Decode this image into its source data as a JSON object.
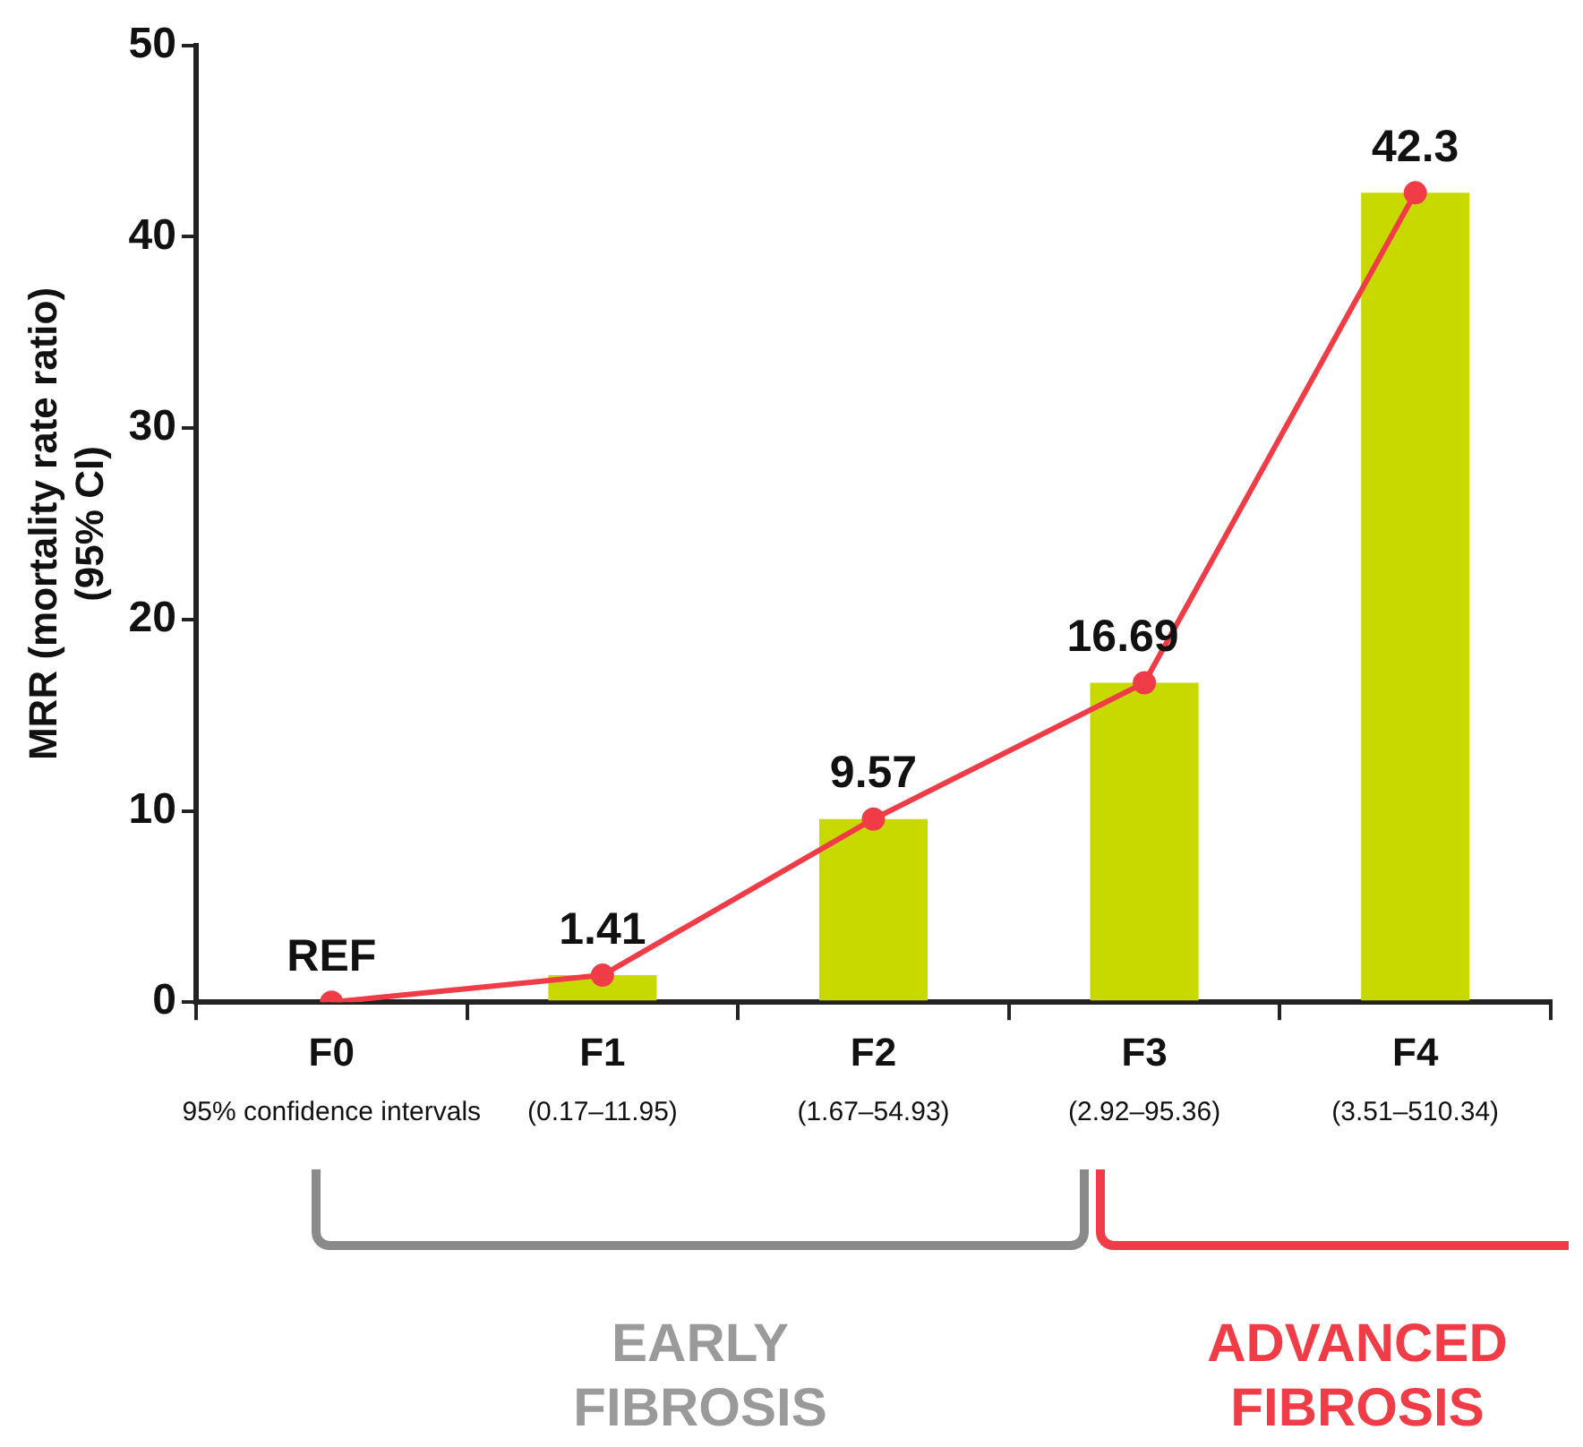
{
  "chart_data": {
    "type": "bar",
    "ylabel": "MRR (mortality rate ratio)\n(95% CI)",
    "categories": [
      "F0",
      "F1",
      "F2",
      "F3",
      "F4"
    ],
    "series": [
      {
        "color": "#c8d900",
        "values": [
          null,
          1.41,
          9.57,
          16.69,
          42.3
        ]
      },
      {
        "type": "line",
        "color": "#f03c46",
        "values": [
          0,
          1.41,
          9.57,
          16.69,
          42.3
        ],
        "marker": "circle",
        "value_labels": [
          "REF",
          "1.41",
          "9.57",
          "16.69",
          "42.3"
        ]
      }
    ],
    "ylim": [
      0,
      50
    ],
    "yticks": [
      0,
      10,
      20,
      30,
      40,
      50
    ],
    "grid": false,
    "legend": false,
    "annotations": [
      "95% confidence intervals",
      "(0.17–11.95)",
      "(1.67–54.93)",
      "(2.92–95.36)",
      "(3.51–510.34)",
      "EARLY FIBROSIS",
      "ADVANCED FIBROSIS"
    ]
  }
}
